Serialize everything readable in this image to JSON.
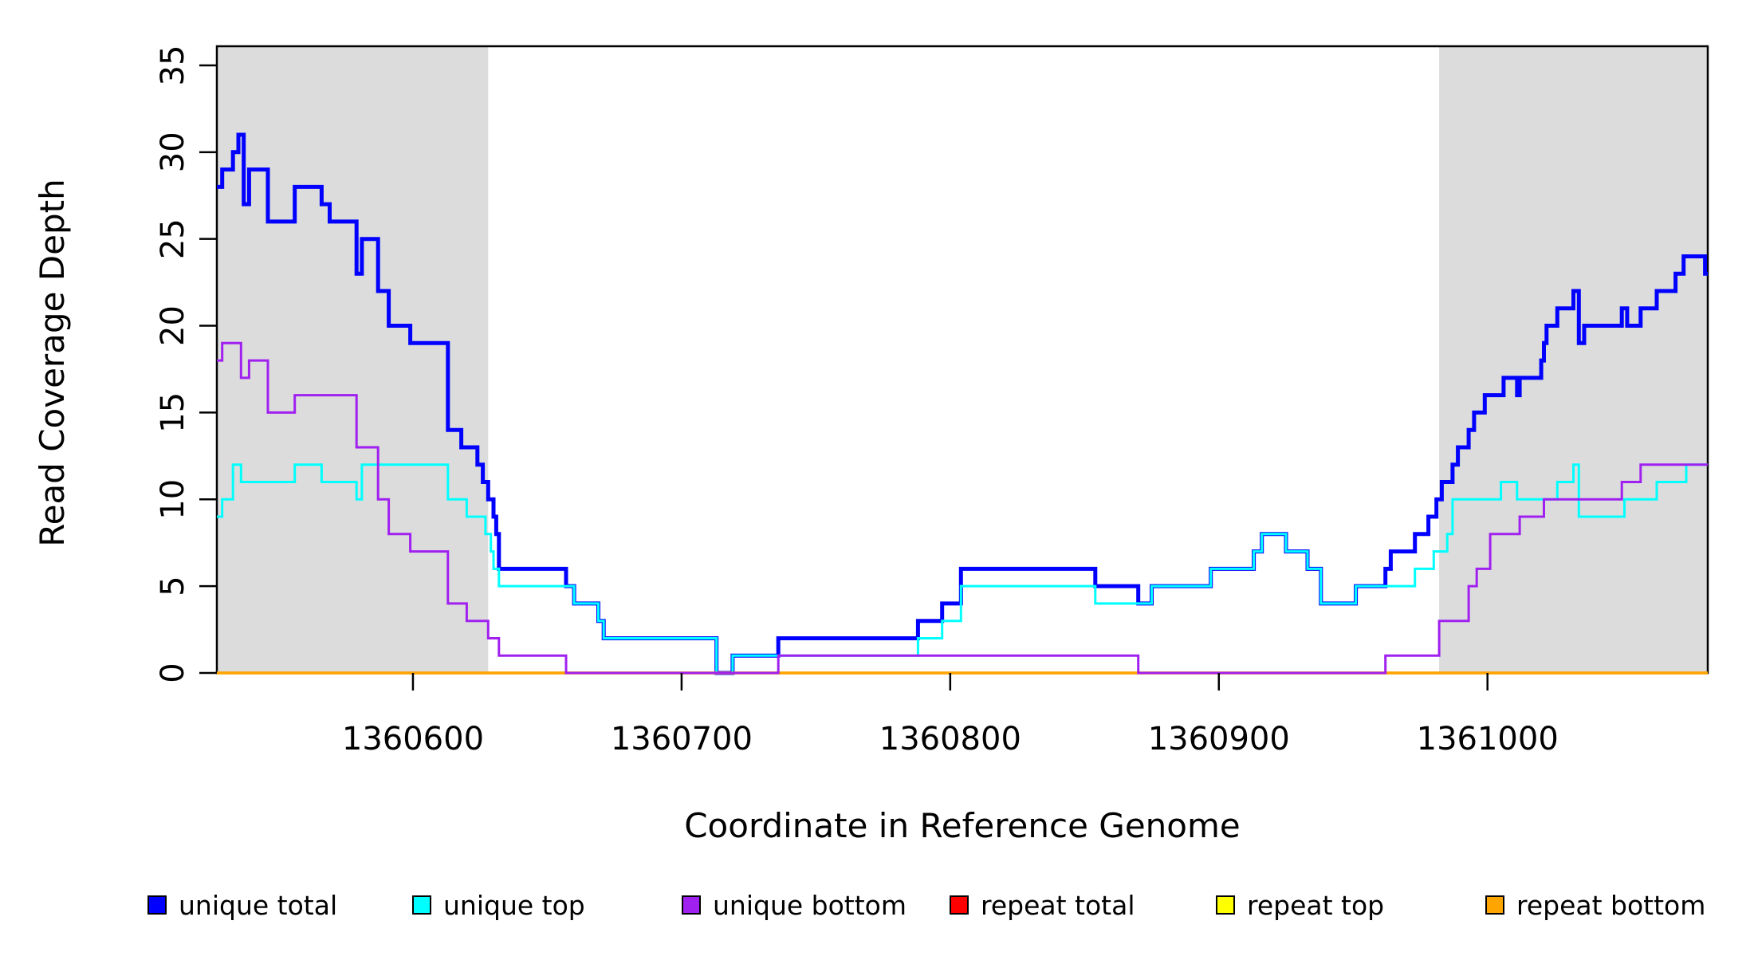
{
  "chart_data": {
    "type": "line",
    "subtype": "step-coverage",
    "title": "",
    "xlabel": "Coordinate in Reference Genome",
    "ylabel": "Read Coverage Depth",
    "xlim": [
      1360527,
      1361082
    ],
    "ylim": [
      0,
      36.1
    ],
    "grid": "off",
    "x_ticks": [
      1360600,
      1360700,
      1360800,
      1360900,
      1361000
    ],
    "y_ticks": [
      0,
      5,
      10,
      15,
      20,
      25,
      30,
      35
    ],
    "y_tick_labels_rotated": true,
    "shaded_regions": [
      {
        "name": "repeat-flank-left",
        "x0": 1360527,
        "x1": 1360628,
        "color": "#DCDCDC"
      },
      {
        "name": "repeat-flank-right",
        "x0": 1360982,
        "x1": 1361082,
        "color": "#DCDCDC"
      }
    ],
    "legend": {
      "position": "bottom",
      "entries": [
        {
          "label": "unique total",
          "color": "#0000FF"
        },
        {
          "label": "unique top",
          "color": "#00FFFF"
        },
        {
          "label": "unique bottom",
          "color": "#A020F0"
        },
        {
          "label": "repeat total",
          "color": "#FF0000"
        },
        {
          "label": "repeat top",
          "color": "#FFFF00"
        },
        {
          "label": "repeat bottom",
          "color": "#FFA500"
        }
      ]
    },
    "series": [
      {
        "name": "unique total",
        "color": "#0000FF",
        "width": 5,
        "z": 1,
        "steps": [
          [
            1360527,
            28
          ],
          [
            1360529,
            29
          ],
          [
            1360533,
            30
          ],
          [
            1360535,
            31
          ],
          [
            1360537,
            27
          ],
          [
            1360539,
            29
          ],
          [
            1360546,
            26
          ],
          [
            1360556,
            28
          ],
          [
            1360566,
            27
          ],
          [
            1360569,
            26
          ],
          [
            1360579,
            23
          ],
          [
            1360581,
            25
          ],
          [
            1360587,
            22
          ],
          [
            1360591,
            20
          ],
          [
            1360599,
            19
          ],
          [
            1360613,
            14
          ],
          [
            1360618,
            13
          ],
          [
            1360624,
            12
          ],
          [
            1360626,
            11
          ],
          [
            1360628,
            10
          ],
          [
            1360630,
            9
          ],
          [
            1360631,
            8
          ],
          [
            1360632,
            6
          ],
          [
            1360657,
            5
          ],
          [
            1360660,
            4
          ],
          [
            1360669,
            3
          ],
          [
            1360671,
            2
          ],
          [
            1360713,
            0
          ],
          [
            1360719,
            1
          ],
          [
            1360736,
            2
          ],
          [
            1360788,
            3
          ],
          [
            1360797,
            4
          ],
          [
            1360804,
            6
          ],
          [
            1360854,
            5
          ],
          [
            1360870,
            4
          ],
          [
            1360875,
            5
          ],
          [
            1360897,
            6
          ],
          [
            1360913,
            7
          ],
          [
            1360916,
            8
          ],
          [
            1360925,
            7
          ],
          [
            1360933,
            6
          ],
          [
            1360938,
            4
          ],
          [
            1360951,
            5
          ],
          [
            1360962,
            6
          ],
          [
            1360964,
            7
          ],
          [
            1360973,
            8
          ],
          [
            1360978,
            9
          ],
          [
            1360981,
            10
          ],
          [
            1360983,
            11
          ],
          [
            1360987,
            12
          ],
          [
            1360989,
            13
          ],
          [
            1360993,
            14
          ],
          [
            1360995,
            15
          ],
          [
            1360999,
            16
          ],
          [
            1361006,
            17
          ],
          [
            1361011,
            16
          ],
          [
            1361012,
            17
          ],
          [
            1361020,
            18
          ],
          [
            1361021,
            19
          ],
          [
            1361022,
            20
          ],
          [
            1361026,
            21
          ],
          [
            1361032,
            22
          ],
          [
            1361034,
            19
          ],
          [
            1361036,
            20
          ],
          [
            1361050,
            21
          ],
          [
            1361052,
            20
          ],
          [
            1361057,
            21
          ],
          [
            1361063,
            22
          ],
          [
            1361070,
            23
          ],
          [
            1361073,
            24
          ],
          [
            1361081,
            23
          ]
        ]
      },
      {
        "name": "unique top",
        "color": "#00FFFF",
        "width": 3,
        "z": 2,
        "steps": [
          [
            1360527,
            9
          ],
          [
            1360529,
            10
          ],
          [
            1360533,
            12
          ],
          [
            1360536,
            11
          ],
          [
            1360556,
            12
          ],
          [
            1360566,
            11
          ],
          [
            1360579,
            10
          ],
          [
            1360581,
            12
          ],
          [
            1360613,
            10
          ],
          [
            1360620,
            9
          ],
          [
            1360627,
            8
          ],
          [
            1360629,
            7
          ],
          [
            1360630,
            6
          ],
          [
            1360632,
            5
          ],
          [
            1360660,
            4
          ],
          [
            1360669,
            3
          ],
          [
            1360671,
            2
          ],
          [
            1360713,
            0
          ],
          [
            1360719,
            1
          ],
          [
            1360788,
            2
          ],
          [
            1360797,
            3
          ],
          [
            1360804,
            5
          ],
          [
            1360854,
            4
          ],
          [
            1360875,
            5
          ],
          [
            1360897,
            6
          ],
          [
            1360913,
            7
          ],
          [
            1360916,
            8
          ],
          [
            1360925,
            7
          ],
          [
            1360933,
            6
          ],
          [
            1360938,
            4
          ],
          [
            1360951,
            5
          ],
          [
            1360973,
            6
          ],
          [
            1360980,
            7
          ],
          [
            1360985,
            8
          ],
          [
            1360987,
            10
          ],
          [
            1361005,
            11
          ],
          [
            1361011,
            10
          ],
          [
            1361026,
            11
          ],
          [
            1361032,
            12
          ],
          [
            1361034,
            9
          ],
          [
            1361051,
            10
          ],
          [
            1361063,
            11
          ],
          [
            1361074,
            12
          ]
        ]
      },
      {
        "name": "repeat total",
        "color": "#FF0000",
        "width": 3.2,
        "z": 3,
        "steps": [
          [
            1360527,
            0
          ]
        ]
      },
      {
        "name": "repeat top",
        "color": "#FFFF00",
        "width": 3.2,
        "z": 4,
        "steps": [
          [
            1360527,
            0
          ]
        ]
      },
      {
        "name": "repeat bottom",
        "color": "#FFA500",
        "width": 3.6,
        "z": 5,
        "steps": [
          [
            1360527,
            0
          ]
        ]
      },
      {
        "name": "unique bottom",
        "color": "#A020F0",
        "width": 3,
        "z": 6,
        "steps": [
          [
            1360527,
            18
          ],
          [
            1360529,
            19
          ],
          [
            1360536,
            17
          ],
          [
            1360539,
            18
          ],
          [
            1360546,
            15
          ],
          [
            1360556,
            16
          ],
          [
            1360579,
            13
          ],
          [
            1360587,
            10
          ],
          [
            1360591,
            8
          ],
          [
            1360599,
            7
          ],
          [
            1360613,
            4
          ],
          [
            1360620,
            3
          ],
          [
            1360628,
            2
          ],
          [
            1360632,
            1
          ],
          [
            1360657,
            0
          ],
          [
            1360736,
            1
          ],
          [
            1360870,
            0
          ],
          [
            1360962,
            1
          ],
          [
            1360982,
            3
          ],
          [
            1360993,
            5
          ],
          [
            1360996,
            6
          ],
          [
            1361001,
            8
          ],
          [
            1361012,
            9
          ],
          [
            1361021,
            10
          ],
          [
            1361050,
            11
          ],
          [
            1361057,
            12
          ]
        ]
      }
    ]
  }
}
